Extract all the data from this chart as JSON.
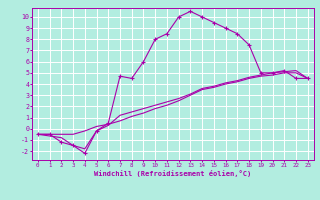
{
  "title": "",
  "xlabel": "Windchill (Refroidissement éolien,°C)",
  "bg_color": "#b2ede0",
  "line_color": "#aa00aa",
  "grid_color": "#ffffff",
  "xlim": [
    -0.5,
    23.5
  ],
  "ylim": [
    -2.8,
    10.8
  ],
  "xticks": [
    0,
    1,
    2,
    3,
    4,
    5,
    6,
    7,
    8,
    9,
    10,
    11,
    12,
    13,
    14,
    15,
    16,
    17,
    18,
    19,
    20,
    21,
    22,
    23
  ],
  "yticks": [
    -2,
    -1,
    0,
    1,
    2,
    3,
    4,
    5,
    6,
    7,
    8,
    9,
    10
  ],
  "line1_x": [
    0,
    1,
    2,
    3,
    4,
    5,
    6,
    7,
    8,
    9,
    10,
    11,
    12,
    13,
    14,
    15,
    16,
    17,
    18,
    19,
    20,
    21,
    22,
    23
  ],
  "line1_y": [
    -0.5,
    -0.5,
    -1.2,
    -1.5,
    -2.2,
    -0.2,
    0.5,
    4.7,
    4.5,
    6.0,
    8.0,
    8.5,
    10.0,
    10.5,
    10.0,
    9.5,
    9.0,
    8.5,
    7.5,
    5.0,
    5.0,
    5.2,
    4.5,
    4.5
  ],
  "line2_x": [
    0,
    2,
    3,
    4,
    5,
    6,
    7,
    8,
    9,
    10,
    11,
    12,
    13,
    14,
    15,
    16,
    17,
    18,
    19,
    20,
    21,
    22,
    23
  ],
  "line2_y": [
    -0.5,
    -0.5,
    -0.5,
    -0.2,
    0.2,
    0.4,
    0.7,
    1.1,
    1.4,
    1.8,
    2.1,
    2.5,
    3.0,
    3.5,
    3.7,
    4.0,
    4.2,
    4.5,
    4.7,
    4.8,
    5.0,
    5.0,
    4.5
  ],
  "line3_x": [
    0,
    2,
    3,
    4,
    5,
    6,
    7,
    8,
    9,
    10,
    11,
    12,
    13,
    14,
    15,
    16,
    17,
    18,
    19,
    20,
    21,
    22,
    23
  ],
  "line3_y": [
    -0.5,
    -0.8,
    -1.5,
    -1.8,
    -0.2,
    0.3,
    1.2,
    1.5,
    1.8,
    2.1,
    2.4,
    2.7,
    3.1,
    3.6,
    3.8,
    4.1,
    4.3,
    4.6,
    4.8,
    5.0,
    5.1,
    5.2,
    4.5
  ]
}
